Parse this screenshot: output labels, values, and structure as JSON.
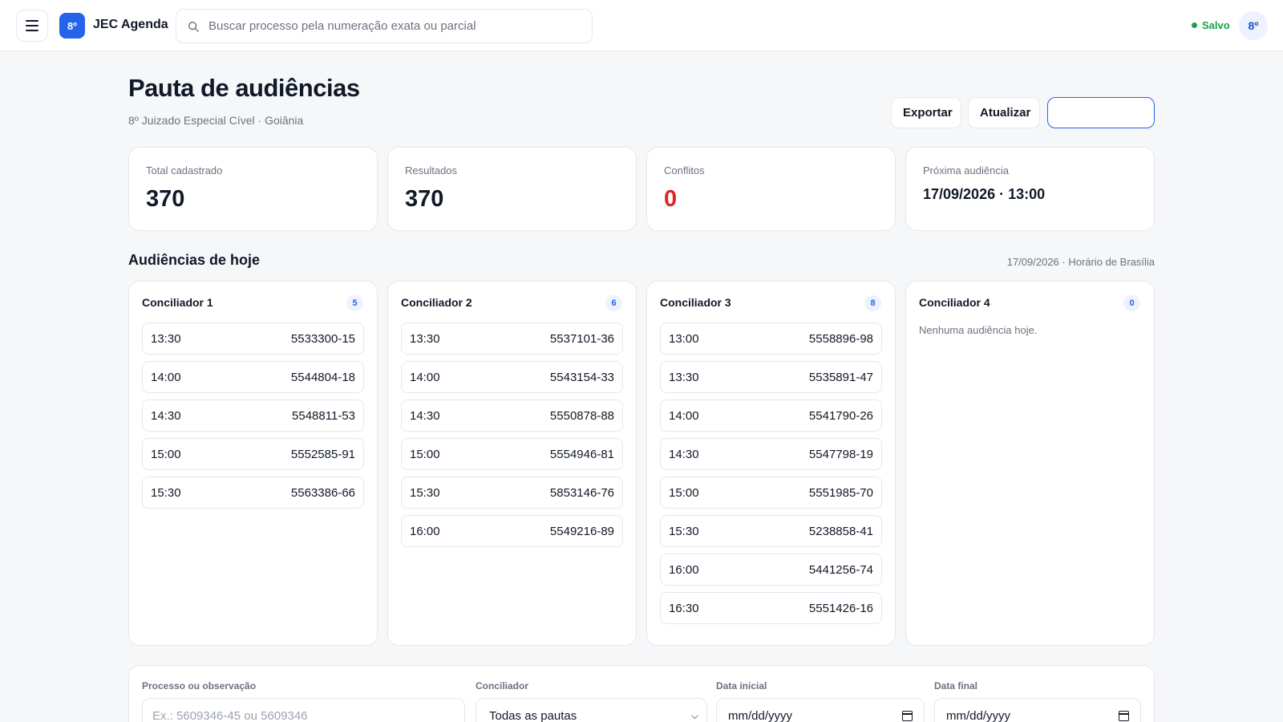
{
  "app": {
    "logo": "8º",
    "title": "JEC Agenda",
    "saved_label": "Salvo",
    "avatar": "8º"
  },
  "search": {
    "placeholder": "Buscar processo pela numeração exata ou parcial",
    "value": ""
  },
  "header": {
    "title": "Pauta de audiências",
    "subtitle": "8º Juizado Especial Cível · Goiânia",
    "export_label": "Exportar",
    "refresh_label": "Atualizar",
    "primary_label": ""
  },
  "stats": {
    "total": {
      "label": "Total cadastrado",
      "value": "370"
    },
    "results": {
      "label": "Resultados",
      "value": "370"
    },
    "conflicts": {
      "label": "Conflitos",
      "value": "0"
    },
    "next": {
      "label": "Próxima audiência",
      "value": "17/09/2026 · 13:00"
    }
  },
  "today": {
    "title": "Audiências de hoje",
    "meta": "17/09/2026 · Horário de Brasília",
    "empty_text": "Nenhuma audiência hoje.",
    "columns": [
      {
        "name": "Conciliador 1",
        "count": "5",
        "slots": [
          {
            "time": "13:30",
            "process": "5533300-15"
          },
          {
            "time": "14:00",
            "process": "5544804-18"
          },
          {
            "time": "14:30",
            "process": "5548811-53"
          },
          {
            "time": "15:00",
            "process": "5552585-91"
          },
          {
            "time": "15:30",
            "process": "5563386-66"
          }
        ]
      },
      {
        "name": "Conciliador 2",
        "count": "6",
        "slots": [
          {
            "time": "13:30",
            "process": "5537101-36"
          },
          {
            "time": "14:00",
            "process": "5543154-33"
          },
          {
            "time": "14:30",
            "process": "5550878-88"
          },
          {
            "time": "15:00",
            "process": "5554946-81"
          },
          {
            "time": "15:30",
            "process": "5853146-76"
          },
          {
            "time": "16:00",
            "process": "5549216-89"
          }
        ]
      },
      {
        "name": "Conciliador 3",
        "count": "8",
        "slots": [
          {
            "time": "13:00",
            "process": "5558896-98"
          },
          {
            "time": "13:30",
            "process": "5535891-47"
          },
          {
            "time": "14:00",
            "process": "5541790-26"
          },
          {
            "time": "14:30",
            "process": "5547798-19"
          },
          {
            "time": "15:00",
            "process": "5551985-70"
          },
          {
            "time": "15:30",
            "process": "5238858-41"
          },
          {
            "time": "16:00",
            "process": "5441256-74"
          },
          {
            "time": "16:30",
            "process": "5551426-16"
          }
        ]
      },
      {
        "name": "Conciliador 4",
        "count": "0",
        "slots": []
      }
    ]
  },
  "filters": {
    "process": {
      "label": "Processo ou observação",
      "placeholder": "Ex.: 5609346-45 ou 5609346",
      "value": ""
    },
    "conciliator": {
      "label": "Conciliador",
      "selected": "Todas as pautas"
    },
    "start_date": {
      "label": "Data inicial",
      "placeholder": "mm/dd/yyyy"
    },
    "end_date": {
      "label": "Data final",
      "placeholder": "mm/dd/yyyy"
    }
  },
  "colors": {
    "accent": "#2563eb",
    "danger": "#dc2626",
    "success": "#16a34a"
  },
  "icons": {
    "menu": "hamburger-icon",
    "search": "search-icon",
    "calendar": "calendar-icon",
    "select": "chevron-down-icon"
  }
}
